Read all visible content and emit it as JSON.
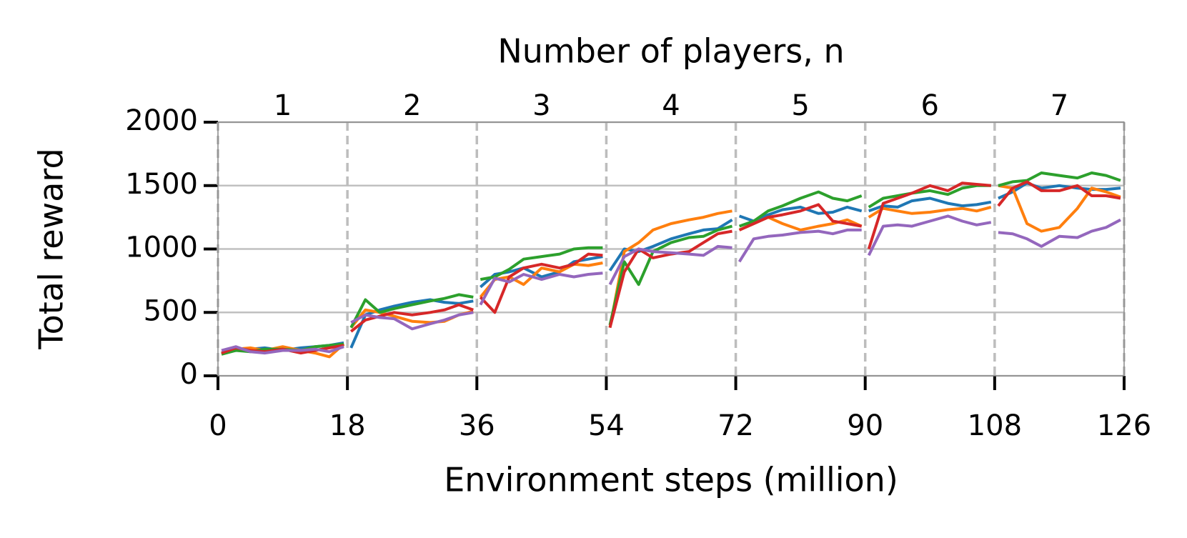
{
  "chart_data": {
    "type": "line",
    "top_axis_label": "Number of players, n",
    "top_categories": [
      "1",
      "2",
      "3",
      "4",
      "5",
      "6",
      "7"
    ],
    "xlabel": "Environment steps (million)",
    "ylabel": "Total reward",
    "x": [
      0.5,
      2.5,
      4.5,
      6.5,
      9,
      11.5,
      13.5,
      15.5,
      17.5,
      18,
      18.5,
      20.5,
      22.5,
      24.5,
      27,
      29.5,
      31.5,
      33.5,
      35.5,
      36,
      36.5,
      38.5,
      40.5,
      42.5,
      45,
      47.5,
      49.5,
      51.5,
      53.5,
      54,
      54.5,
      56.5,
      58.5,
      60.5,
      63,
      65.5,
      67.5,
      69.5,
      71.5,
      72,
      72.5,
      74.5,
      76.5,
      78.5,
      81,
      83.5,
      85.5,
      87.5,
      89.5,
      90,
      90.5,
      92.5,
      94.5,
      96.5,
      99,
      101.5,
      103.5,
      105.5,
      107.5,
      108,
      108.5,
      110.5,
      112.5,
      114.5,
      117,
      119.5,
      121.5,
      123.5,
      125.5
    ],
    "series": [
      {
        "color": "#1f77b4",
        "values": [
          180,
          200,
          210,
          220,
          200,
          220,
          230,
          240,
          260,
          null,
          220,
          480,
          520,
          550,
          580,
          600,
          580,
          570,
          590,
          null,
          700,
          800,
          820,
          850,
          780,
          820,
          900,
          920,
          940,
          null,
          830,
          1000,
          980,
          1020,
          1080,
          1120,
          1150,
          1160,
          1230,
          null,
          1260,
          1220,
          1270,
          1310,
          1330,
          1280,
          1290,
          1330,
          1300,
          null,
          1300,
          1340,
          1330,
          1380,
          1400,
          1360,
          1340,
          1350,
          1370,
          null,
          1400,
          1450,
          1520,
          1480,
          1500,
          1480,
          1470,
          1470,
          1480
        ]
      },
      {
        "color": "#ff7f0e",
        "values": [
          170,
          210,
          220,
          200,
          230,
          200,
          180,
          150,
          250,
          null,
          380,
          520,
          500,
          470,
          430,
          420,
          430,
          480,
          510,
          null,
          620,
          760,
          780,
          720,
          850,
          820,
          880,
          870,
          890,
          null,
          380,
          980,
          1050,
          1150,
          1200,
          1230,
          1250,
          1280,
          1300,
          null,
          1150,
          1200,
          1250,
          1200,
          1150,
          1180,
          1200,
          1230,
          1180,
          null,
          1250,
          1320,
          1300,
          1280,
          1290,
          1310,
          1320,
          1300,
          1330,
          null,
          1500,
          1480,
          1200,
          1140,
          1170,
          1320,
          1480,
          1450,
          1410
        ]
      },
      {
        "color": "#2ca02c",
        "values": [
          170,
          200,
          190,
          210,
          210,
          200,
          230,
          240,
          250,
          null,
          380,
          600,
          500,
          530,
          560,
          590,
          610,
          640,
          620,
          null,
          760,
          780,
          840,
          920,
          940,
          960,
          1000,
          1010,
          1010,
          null,
          400,
          900,
          720,
          980,
          1050,
          1090,
          1100,
          1150,
          1180,
          null,
          1180,
          1220,
          1300,
          1340,
          1400,
          1450,
          1400,
          1380,
          1420,
          null,
          1330,
          1400,
          1420,
          1440,
          1460,
          1430,
          1480,
          1500,
          1500,
          null,
          1500,
          1530,
          1540,
          1600,
          1580,
          1560,
          1600,
          1580,
          1540
        ]
      },
      {
        "color": "#d62728",
        "values": [
          180,
          220,
          200,
          190,
          210,
          180,
          200,
          220,
          240,
          null,
          350,
          440,
          470,
          500,
          480,
          500,
          520,
          560,
          520,
          null,
          620,
          500,
          780,
          850,
          880,
          850,
          880,
          960,
          950,
          null,
          380,
          820,
          1000,
          930,
          960,
          980,
          1050,
          1120,
          1140,
          null,
          1150,
          1200,
          1250,
          1270,
          1300,
          1350,
          1220,
          1200,
          1180,
          null,
          1000,
          1360,
          1400,
          1440,
          1500,
          1460,
          1520,
          1510,
          1500,
          null,
          1340,
          1480,
          1530,
          1460,
          1460,
          1500,
          1420,
          1420,
          1400
        ]
      },
      {
        "color": "#9467bd",
        "values": [
          200,
          230,
          190,
          180,
          200,
          200,
          210,
          190,
          230,
          null,
          420,
          480,
          460,
          450,
          370,
          410,
          440,
          480,
          500,
          null,
          560,
          770,
          740,
          800,
          760,
          800,
          780,
          800,
          810,
          null,
          720,
          940,
          1000,
          980,
          970,
          960,
          950,
          1020,
          1010,
          null,
          900,
          1080,
          1100,
          1110,
          1130,
          1140,
          1120,
          1150,
          1150,
          null,
          950,
          1180,
          1190,
          1180,
          1220,
          1260,
          1220,
          1190,
          1210,
          null,
          1130,
          1120,
          1080,
          1020,
          1100,
          1090,
          1140,
          1170,
          1230
        ]
      }
    ],
    "xlim": [
      0,
      126
    ],
    "xticks": [
      0,
      18,
      36,
      54,
      72,
      90,
      108,
      126
    ],
    "ylim": [
      0,
      2000
    ],
    "yticks": [
      0,
      500,
      1000,
      1500,
      2000
    ],
    "ygrid": true,
    "xgrid": "dashed"
  }
}
